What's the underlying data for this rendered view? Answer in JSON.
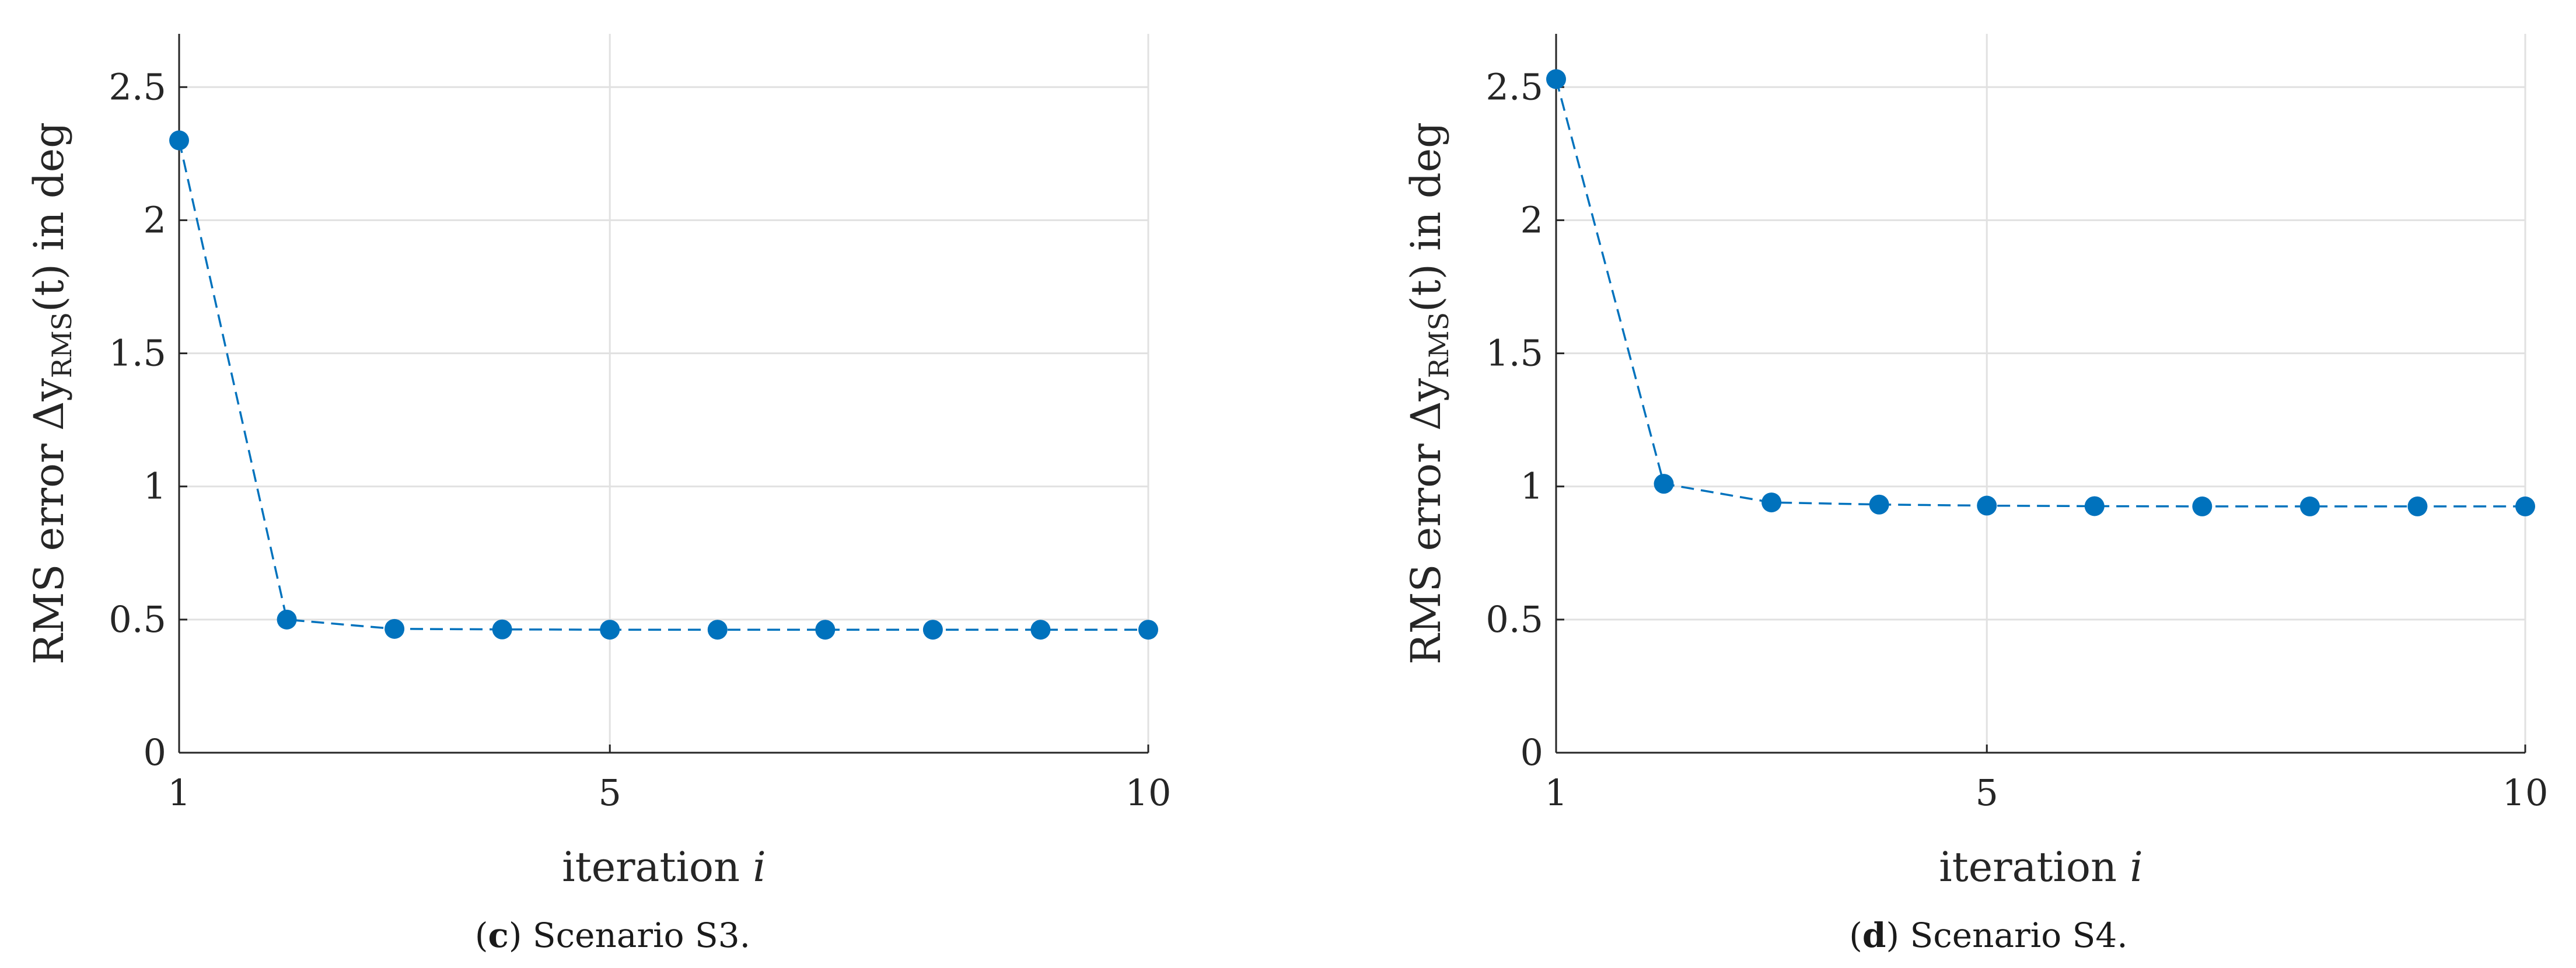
{
  "colors": {
    "series": "#0072bd",
    "grid": "#e1e1e1",
    "axis": "#262626"
  },
  "chart_data": [
    {
      "type": "line",
      "xlabel_text": "iteration",
      "xlabel_var": "i",
      "ylabel_text": "RMS error Δy",
      "ylabel_sub": "RMS",
      "ylabel_tail": "(t) in deg",
      "xlim": [
        1,
        10
      ],
      "ylim": [
        0,
        2.7
      ],
      "xticks": [
        1,
        5,
        10
      ],
      "yticks": [
        0,
        0.5,
        1,
        1.5,
        2,
        2.5
      ],
      "xtick_labels": [
        "1",
        "5",
        "10"
      ],
      "ytick_labels": [
        "0",
        "0.5",
        "1",
        "1.5",
        "2",
        "2.5"
      ],
      "grid": true,
      "caption_letter": "c",
      "caption_text": "Scenario S3.",
      "series": [
        {
          "x": [
            1,
            2,
            3,
            4,
            5,
            6,
            7,
            8,
            9,
            10
          ],
          "values": [
            2.3,
            0.5,
            0.465,
            0.463,
            0.462,
            0.462,
            0.462,
            0.462,
            0.462,
            0.462
          ]
        }
      ]
    },
    {
      "type": "line",
      "xlabel_text": "iteration",
      "xlabel_var": "i",
      "ylabel_text": "RMS error Δy",
      "ylabel_sub": "RMS",
      "ylabel_tail": "(t) in deg",
      "xlim": [
        1,
        10
      ],
      "ylim": [
        0,
        2.7
      ],
      "xticks": [
        1,
        5,
        10
      ],
      "yticks": [
        0,
        0.5,
        1,
        1.5,
        2,
        2.5
      ],
      "xtick_labels": [
        "1",
        "5",
        "10"
      ],
      "ytick_labels": [
        "0",
        "0.5",
        "1",
        "1.5",
        "2",
        "2.5"
      ],
      "grid": true,
      "caption_letter": "d",
      "caption_text": "Scenario S4.",
      "series": [
        {
          "x": [
            1,
            2,
            3,
            4,
            5,
            6,
            7,
            8,
            9,
            10
          ],
          "values": [
            2.53,
            1.01,
            0.94,
            0.932,
            0.928,
            0.926,
            0.925,
            0.925,
            0.925,
            0.925
          ]
        }
      ]
    }
  ]
}
